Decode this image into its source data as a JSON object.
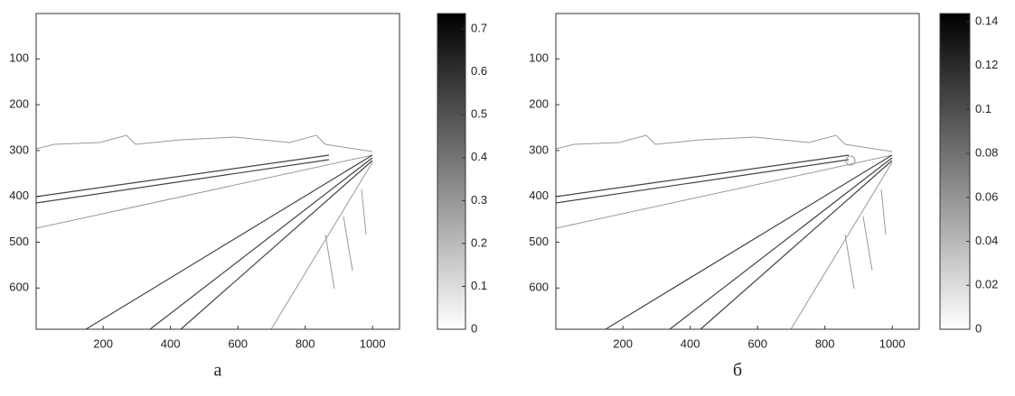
{
  "chart_data": [
    {
      "type": "image",
      "caption": "а",
      "xlim": [
        1,
        1080
      ],
      "ylim": [
        1,
        690
      ],
      "xticks": [
        200,
        400,
        600,
        800,
        1000
      ],
      "yticks": [
        100,
        200,
        300,
        400,
        500,
        600
      ],
      "colorbar": {
        "clim": [
          0,
          0.736
        ],
        "ticks": [
          0,
          0.1,
          0.2,
          0.3,
          0.4,
          0.5,
          0.6,
          0.7
        ],
        "colormap": [
          "#ffffff",
          "#000000"
        ]
      }
    },
    {
      "type": "image",
      "caption": "б",
      "xlim": [
        1,
        1080
      ],
      "ylim": [
        1,
        690
      ],
      "xticks": [
        200,
        400,
        600,
        800,
        1000
      ],
      "yticks": [
        100,
        200,
        300,
        400,
        500,
        600
      ],
      "colorbar": {
        "clim": [
          0,
          0.1437
        ],
        "ticks": [
          0,
          0.02,
          0.04,
          0.06,
          0.08,
          0.1,
          0.12,
          0.14
        ],
        "colormap": [
          "#ffffff",
          "#000000"
        ]
      }
    }
  ]
}
